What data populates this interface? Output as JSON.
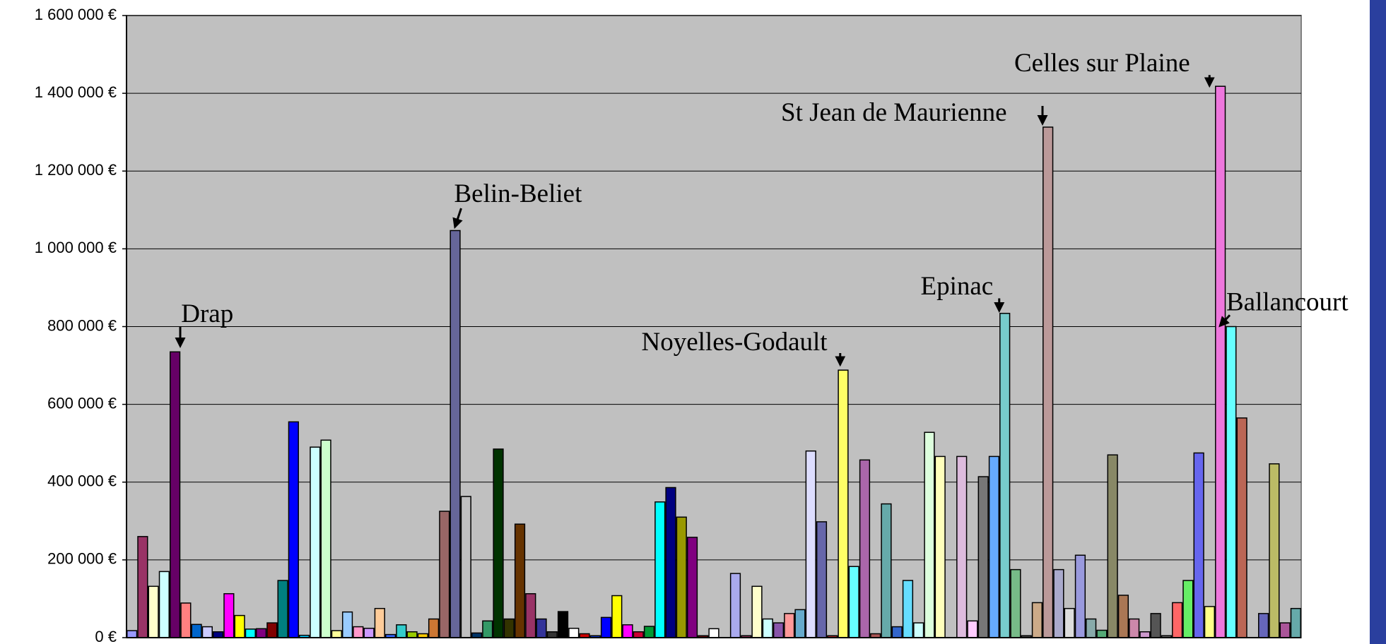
{
  "chart_data": {
    "type": "bar",
    "annotations": [
      "Drap",
      "Belin-Beliet",
      "Noyelles-Godault",
      "St Jean de Maurienne",
      "Epinac",
      "Celles sur Plaine",
      "Ballancourt"
    ],
    "categories": [
      null,
      null,
      null,
      null,
      null,
      null,
      null,
      null,
      null,
      null,
      null,
      null,
      null,
      null,
      null,
      null,
      null,
      null,
      null,
      null,
      null,
      null,
      null,
      null,
      null,
      null,
      null,
      null,
      null,
      null,
      null,
      null,
      null,
      null,
      null,
      null,
      null,
      null,
      null,
      null,
      null,
      null,
      null,
      null,
      null,
      null,
      null,
      null,
      null,
      null,
      null,
      null,
      null,
      null,
      null,
      null,
      null,
      null,
      null,
      null,
      null,
      null,
      null,
      null,
      null,
      null,
      null,
      null,
      null,
      null,
      null,
      null,
      null,
      null,
      null,
      null,
      null,
      null,
      null,
      null,
      null,
      null,
      null,
      null,
      null,
      null,
      null,
      null,
      null,
      null,
      null,
      null,
      null,
      null,
      null,
      null,
      null,
      null,
      null,
      null,
      null,
      null,
      null,
      null,
      null,
      null,
      null,
      null,
      null
    ],
    "values": [
      18000,
      260000,
      132000,
      170000,
      735000,
      89000,
      34000,
      28000,
      15000,
      113000,
      57000,
      22000,
      23000,
      38000,
      147000,
      555000,
      6000,
      490000,
      508000,
      18000,
      66000,
      28000,
      24000,
      75000,
      8000,
      33000,
      15000,
      10000,
      48000,
      325000,
      1047000,
      363000,
      12000,
      43000,
      485000,
      48000,
      292000,
      113000,
      48000,
      15000,
      67000,
      24000,
      10000,
      5000,
      52000,
      108000,
      33000,
      15000,
      29000,
      349000,
      386000,
      310000,
      258000,
      5000,
      23000,
      0,
      165000,
      5000,
      132000,
      48000,
      38000,
      62000,
      72000,
      480000,
      298000,
      5000,
      688000,
      183000,
      457000,
      10000,
      344000,
      28000,
      147000,
      38000,
      528000,
      466000,
      0,
      466000,
      43000,
      414000,
      466000,
      834000,
      175000,
      5000,
      90000,
      1313000,
      175000,
      75000,
      212000,
      48000,
      19000,
      470000,
      109000,
      48000,
      15000,
      62000,
      5000,
      90000,
      147000,
      475000,
      80000,
      1418000,
      800000,
      565000,
      0,
      62000,
      447000,
      38000,
      75000
    ],
    "colors": [
      "#9999ff",
      "#993366",
      "#ffffcc",
      "#ccffff",
      "#660066",
      "#ff8080",
      "#0066cc",
      "#ccccff",
      "#000080",
      "#ff00ff",
      "#ffff00",
      "#00ffff",
      "#800080",
      "#800000",
      "#008080",
      "#0000ff",
      "#00ccff",
      "#ccffff",
      "#ccffcc",
      "#ffff99",
      "#99ccff",
      "#ff99cc",
      "#cc99ff",
      "#ffcc99",
      "#3366ff",
      "#33cccc",
      "#99cc00",
      "#ffcc00",
      "#cc7733",
      "#996666",
      "#666699",
      "#c0c0c0",
      "#003366",
      "#339966",
      "#003300",
      "#333300",
      "#663300",
      "#993366",
      "#333399",
      "#333333",
      "#000000",
      "#ffffff",
      "#cc0000",
      "#0033cc",
      "#0000ff",
      "#ffff00",
      "#ff00ff",
      "#cc0033",
      "#009933",
      "#00ffff",
      "#000080",
      "#999900",
      "#800080",
      "#660000",
      "#ffffff",
      "#cccccc",
      "#aaaaee",
      "#883355",
      "#ffffcc",
      "#ccffff",
      "#8855aa",
      "#ff9999",
      "#66aacc",
      "#ddddff",
      "#6666aa",
      "#aa2222",
      "#ffff66",
      "#66ffff",
      "#aa66aa",
      "#aa5555",
      "#66aaaa",
      "#3366cc",
      "#66ddff",
      "#ccffff",
      "#ddffdd",
      "#ffffbb",
      "#cccccc",
      "#ddbbdd",
      "#ffccff",
      "#777777",
      "#66aaff",
      "#77cccc",
      "#77bb88",
      "#444444",
      "#ccaa88",
      "#bb9999",
      "#aaaacc",
      "#dddddd",
      "#9999dd",
      "#88aaaa",
      "#55aa77",
      "#888866",
      "#aa7755",
      "#cc88aa",
      "#cc99cc",
      "#555555",
      "#666666",
      "#ff6666",
      "#66ee66",
      "#6666ee",
      "#ffff88",
      "#ee77dd",
      "#66ffff",
      "#bb6655",
      "#bbbbbb",
      "#6666bb",
      "#bbbb66",
      "#aa5599",
      "#66aaaa"
    ],
    "ylim": [
      0,
      1600000
    ],
    "yticks": [
      {
        "value": 0,
        "label": "0 €"
      },
      {
        "value": 200000,
        "label": "200 000 €"
      },
      {
        "value": 400000,
        "label": "400 000 €"
      },
      {
        "value": 600000,
        "label": "600 000 €"
      },
      {
        "value": 800000,
        "label": "800 000 €"
      },
      {
        "value": 1000000,
        "label": "1 000 000 €"
      },
      {
        "value": 1200000,
        "label": "1 200 000 €"
      },
      {
        "value": 1400000,
        "label": "1 400 000 €"
      },
      {
        "value": 1600000,
        "label": "1 600 000 €"
      }
    ],
    "grid": true
  }
}
